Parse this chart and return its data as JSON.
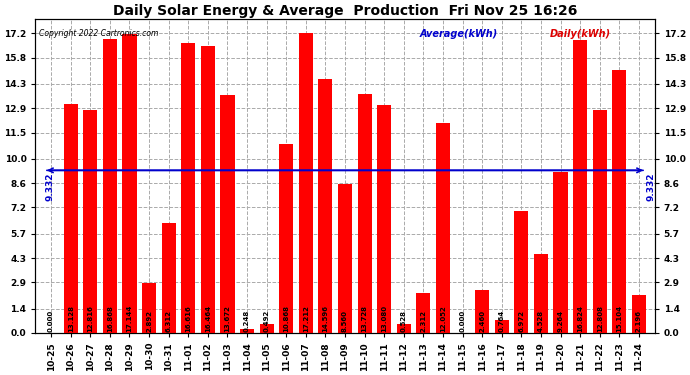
{
  "title": "Daily Solar Energy & Average  Production  Fri Nov 25 16:26",
  "copyright": "Copyright 2022 Cartronics.com",
  "legend_average": "Average(kWh)",
  "legend_daily": "Daily(kWh)",
  "categories": [
    "10-25",
    "10-26",
    "10-27",
    "10-28",
    "10-29",
    "10-30",
    "10-31",
    "11-01",
    "11-02",
    "11-03",
    "11-04",
    "11-05",
    "11-06",
    "11-07",
    "11-08",
    "11-09",
    "11-10",
    "11-11",
    "11-12",
    "11-13",
    "11-14",
    "11-15",
    "11-16",
    "11-17",
    "11-18",
    "11-19",
    "11-20",
    "11-21",
    "11-22",
    "11-23",
    "11-24"
  ],
  "values": [
    0.0,
    13.128,
    12.816,
    16.868,
    17.144,
    2.892,
    6.312,
    16.616,
    16.464,
    13.672,
    0.248,
    0.492,
    10.868,
    17.212,
    14.596,
    8.56,
    13.728,
    13.08,
    0.528,
    2.312,
    12.052,
    0.0,
    2.46,
    0.764,
    6.972,
    4.528,
    9.264,
    16.824,
    12.808,
    15.104,
    2.196
  ],
  "average": 9.332,
  "bar_color": "#ff0000",
  "avg_line_color": "#0000cc",
  "avg_label_color": "#0000cc",
  "daily_label_color": "#dd0000",
  "title_color": "#000000",
  "yticks": [
    0.0,
    1.4,
    2.9,
    4.3,
    5.7,
    7.2,
    8.6,
    10.0,
    11.5,
    12.9,
    14.3,
    15.8,
    17.2
  ],
  "background_color": "#ffffff",
  "grid_color": "#aaaaaa",
  "bar_label_fontsize": 5.0,
  "avg_text": "9.332",
  "ylim_max": 18.0,
  "figwidth": 6.9,
  "figheight": 3.75,
  "dpi": 100
}
